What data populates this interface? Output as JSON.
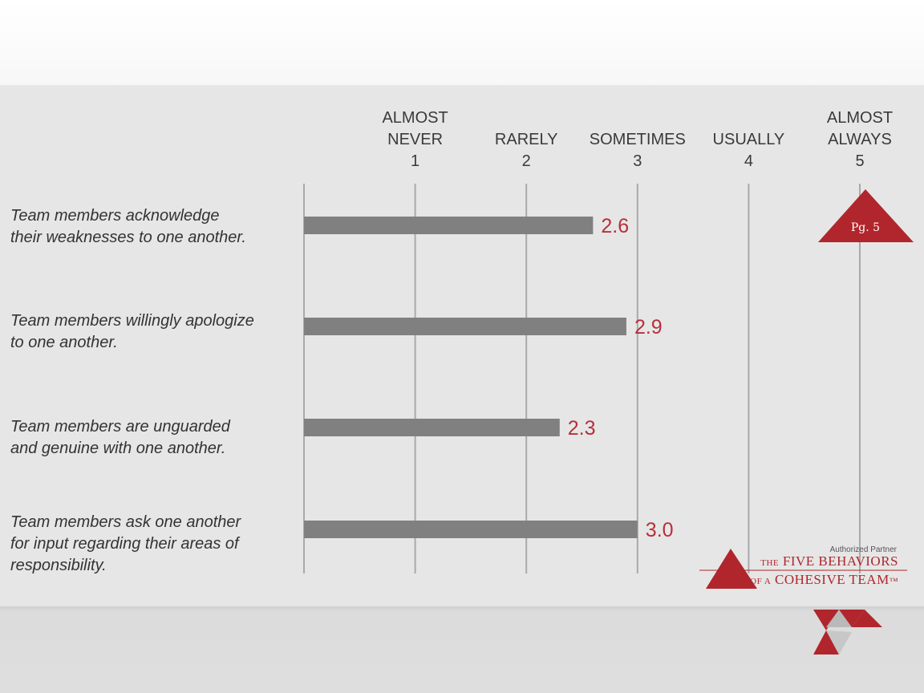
{
  "page_label": "Pg. 5",
  "logo": {
    "partner_text": "Authorized Partner",
    "brand_prefix1": "THE",
    "brand_main1": "FIVE BEHAVIORS",
    "brand_prefix2": "OF A",
    "brand_main2": "COHESIVE TEAM",
    "trademark": "™"
  },
  "colors": {
    "bar": "#808080",
    "value_label": "#b5303a",
    "accent": "#b0262c",
    "panel": "#e6e6e6"
  },
  "chart_data": {
    "type": "bar",
    "orientation": "horizontal",
    "scale": [
      {
        "value": 1,
        "lines": [
          "ALMOST",
          "NEVER",
          "1"
        ]
      },
      {
        "value": 2,
        "lines": [
          "RARELY",
          "2"
        ]
      },
      {
        "value": 3,
        "lines": [
          "SOMETIMES",
          "3"
        ]
      },
      {
        "value": 4,
        "lines": [
          "USUALLY",
          "4"
        ]
      },
      {
        "value": 5,
        "lines": [
          "ALMOST",
          "ALWAYS",
          "5"
        ]
      }
    ],
    "xlim": [
      0,
      5
    ],
    "grid": true,
    "categories": [
      [
        "Team members acknowledge",
        "their weaknesses to one another."
      ],
      [
        "Team members willingly apologize",
        "to one another."
      ],
      [
        "Team members are unguarded",
        "and genuine with one another."
      ],
      [
        "Team members ask one another",
        "for input regarding their areas of",
        "responsibility."
      ]
    ],
    "values": [
      2.6,
      2.9,
      2.3,
      3.0
    ],
    "value_labels": [
      "2.6",
      "2.9",
      "2.3",
      "3.0"
    ]
  }
}
